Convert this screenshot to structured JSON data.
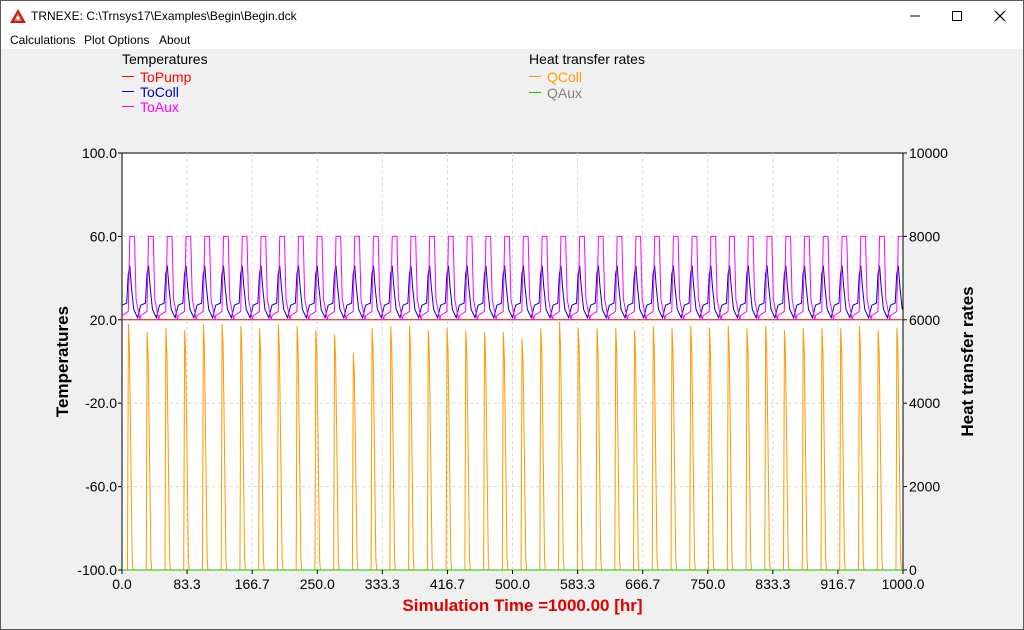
{
  "window": {
    "title": "TRNEXE: C:\\Trnsys17\\Examples\\Begin\\Begin.dck",
    "icon": "trnsys-app-icon",
    "controls": [
      "minimize-icon",
      "maximize-icon",
      "close-icon"
    ]
  },
  "menu": {
    "items": [
      {
        "label": "Calculations"
      },
      {
        "label": "Plot Options"
      },
      {
        "label": "About"
      }
    ]
  },
  "legend": {
    "left_title": "Temperatures",
    "left_items": [
      {
        "label": "ToPump",
        "color": "#ff0000"
      },
      {
        "label": "ToColl",
        "color": "#0000cc"
      },
      {
        "label": "ToAux",
        "color": "#ff00ff"
      }
    ],
    "right_title": "Heat transfer rates",
    "right_items": [
      {
        "label": "QColl",
        "color": "#ff9900"
      },
      {
        "label": "QAux",
        "color": "#00cc00",
        "text_color": "#808080"
      }
    ]
  },
  "chart_data": {
    "type": "line",
    "xlabel": "Simulation Time =1000.00 [hr]",
    "xlabel_color": "#e00000",
    "ylabel_left": "Temperatures",
    "ylabel_right": "Heat transfer rates",
    "xlim": [
      0,
      1000
    ],
    "ylim_left": [
      -100,
      100
    ],
    "ylim_right": [
      0,
      10000
    ],
    "x_ticks": [
      "0.0",
      "83.3",
      "166.7",
      "250.0",
      "333.3",
      "416.7",
      "500.0",
      "583.3",
      "666.7",
      "750.0",
      "833.3",
      "916.7",
      "1000.0"
    ],
    "y_left_ticks": [
      "100.0",
      "60.0",
      "20.0",
      "-20.0",
      "-60.0",
      "-100.0"
    ],
    "y_right_ticks": [
      "10000",
      "8000",
      "6000",
      "4000",
      "2000",
      "0"
    ],
    "grid": true,
    "legend_position": "top",
    "day_length_hr": 24,
    "series": [
      {
        "name": "ToPump",
        "axis": "left",
        "color": "#ff0000",
        "values_note": "constant",
        "value": 20
      },
      {
        "name": "ToColl",
        "axis": "left",
        "color": "#0000cc",
        "daily_min": 20,
        "daily_max": 46
      },
      {
        "name": "ToAux",
        "axis": "left",
        "color": "#ff00ff",
        "daily_min": 20,
        "daily_max": 60
      },
      {
        "name": "QColl",
        "axis": "right",
        "color": "#ff9900",
        "daily_min": 0,
        "daily_peaks": [
          5900,
          5700,
          5800,
          5750,
          5900,
          5900,
          5850,
          5800,
          5900,
          5850,
          5750,
          5650,
          5200,
          5800,
          5850,
          5850,
          5750,
          5800,
          5750,
          5700,
          5700,
          5550,
          5800,
          5950,
          5800,
          5800,
          5800,
          5750,
          5850,
          5800,
          5850,
          5800,
          5850,
          5800,
          5850,
          5750,
          5800,
          5800,
          5800,
          5850,
          5750,
          5800
        ]
      },
      {
        "name": "QAux",
        "axis": "right",
        "color": "#00cc00",
        "value": 0
      }
    ]
  }
}
